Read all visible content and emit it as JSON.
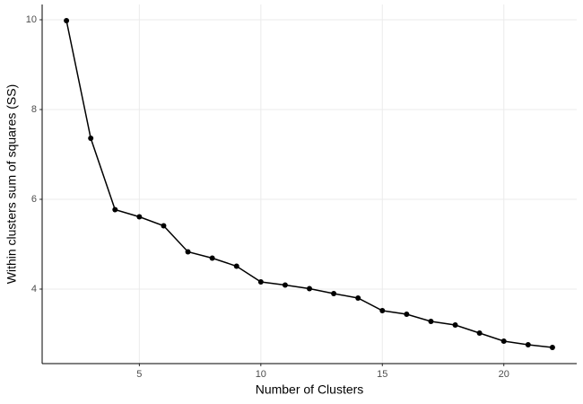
{
  "chart_data": {
    "type": "line",
    "x_label": "Number of Clusters",
    "y_label": "Within clusters sum of squares (SS)",
    "x": [
      2,
      3,
      4,
      5,
      6,
      7,
      8,
      9,
      10,
      11,
      12,
      13,
      14,
      15,
      16,
      17,
      18,
      19,
      20,
      21,
      22
    ],
    "values": [
      9.98,
      7.36,
      5.77,
      5.61,
      5.41,
      4.83,
      4.69,
      4.51,
      4.16,
      4.09,
      4.01,
      3.9,
      3.8,
      3.52,
      3.44,
      3.28,
      3.2,
      3.02,
      2.84,
      2.76,
      2.7
    ],
    "color": "#000000",
    "xlim": [
      1,
      23
    ],
    "xticks": [
      5,
      10,
      15,
      20
    ],
    "ylim": [
      2.34,
      10.34
    ],
    "yticks": [
      4,
      6,
      8,
      10
    ],
    "grid": true,
    "markers": true
  }
}
